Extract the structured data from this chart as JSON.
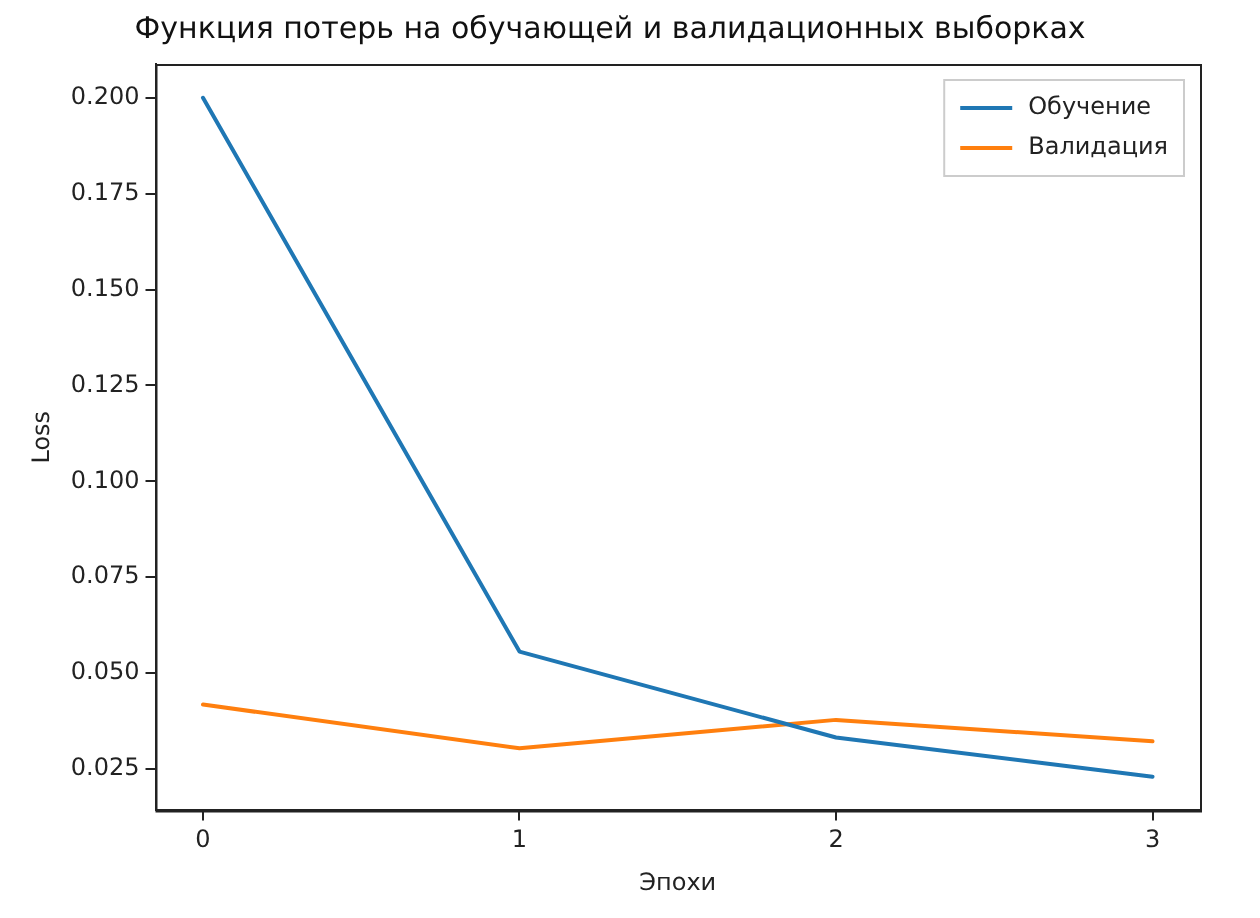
{
  "chart_data": {
    "type": "line",
    "title": "Функция потерь на обучающей и валидационных выборках",
    "xlabel": "Эпохи",
    "ylabel": "Loss",
    "x": [
      0,
      1,
      2,
      3
    ],
    "series": [
      {
        "name": "Обучение",
        "color": "#1f77b4",
        "values": [
          0.2,
          0.0556,
          0.0332,
          0.023
        ]
      },
      {
        "name": "Валидация",
        "color": "#ff7f0e",
        "values": [
          0.0418,
          0.0304,
          0.0378,
          0.0322
        ]
      }
    ],
    "xlim": [
      -0.15,
      3.15
    ],
    "xticks": [
      0,
      1,
      2,
      3
    ],
    "ylim": [
      0.0142,
      0.2088
    ],
    "yticks": [
      {
        "value": 0.025,
        "label": "0.025"
      },
      {
        "value": 0.05,
        "label": "0.050"
      },
      {
        "value": 0.075,
        "label": "0.075"
      },
      {
        "value": 0.1,
        "label": "0.100"
      },
      {
        "value": 0.125,
        "label": "0.125"
      },
      {
        "value": 0.15,
        "label": "0.150"
      },
      {
        "value": 0.175,
        "label": "0.175"
      },
      {
        "value": 0.2,
        "label": "0.200"
      }
    ],
    "grid": false,
    "legend": "top right",
    "marker": "none",
    "line_style": "solid"
  }
}
